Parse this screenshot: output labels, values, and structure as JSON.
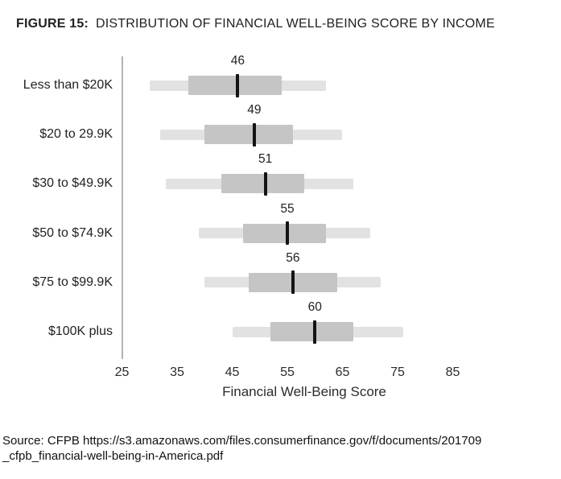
{
  "title": {
    "label": "FIGURE 15:",
    "text": "DISTRIBUTION OF FINANCIAL WELL-BEING SCORE BY INCOME"
  },
  "chart_data": {
    "type": "box",
    "orientation": "horizontal",
    "title": "FIGURE 15: DISTRIBUTION OF FINANCIAL WELL-BEING SCORE BY INCOME",
    "xlabel": "Financial Well-Being Score",
    "x_ticks": [
      "25",
      "35",
      "45",
      "55",
      "65",
      "75",
      "85"
    ],
    "xlim": [
      25,
      88
    ],
    "grid": false,
    "legend": "none",
    "categories": [
      "Less than $20K",
      "$20 to 29.9K",
      "$30 to $49.9K",
      "$50 to $74.9K",
      "$75 to $99.9K",
      "$100K plus"
    ],
    "rows": [
      {
        "label": "Less than $20K",
        "whisker_low": 30,
        "q1": 37,
        "median": 46,
        "q3": 54,
        "whisker_high": 62
      },
      {
        "label": "$20 to 29.9K",
        "whisker_low": 32,
        "q1": 40,
        "median": 49,
        "q3": 56,
        "whisker_high": 65
      },
      {
        "label": "$30 to $49.9K",
        "whisker_low": 33,
        "q1": 43,
        "median": 51,
        "q3": 58,
        "whisker_high": 67
      },
      {
        "label": "$50 to $74.9K",
        "whisker_low": 39,
        "q1": 47,
        "median": 55,
        "q3": 62,
        "whisker_high": 70
      },
      {
        "label": "$75 to $99.9K",
        "whisker_low": 40,
        "q1": 48,
        "median": 56,
        "q3": 64,
        "whisker_high": 72
      },
      {
        "label": "$100K plus",
        "whisker_low": 45,
        "q1": 52,
        "median": 60,
        "q3": 67,
        "whisker_high": 76
      }
    ],
    "colors": {
      "whisker_bar": "#e2e2e2",
      "box": "#c5c5c5",
      "median_line": "#141414",
      "axis_line": "#b3b3b3"
    }
  },
  "source": {
    "line1": "Source: CFPB https://s3.amazonaws.com/files.consumerfinance.gov/f/documents/201709",
    "line2": "_cfpb_financial-well-being-in-America.pdf"
  }
}
